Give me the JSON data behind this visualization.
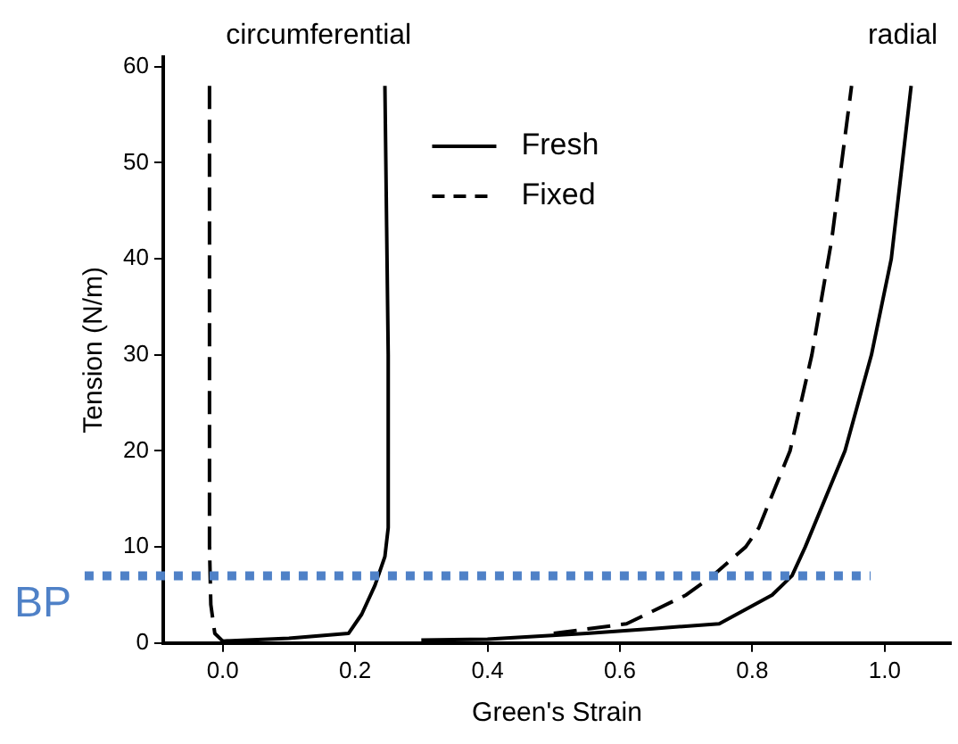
{
  "chart_data": {
    "type": "line",
    "xlabel": "Green's Strain",
    "ylabel": "Tension (N/m)",
    "xlim": [
      -0.09,
      1.1
    ],
    "ylim": [
      0,
      61
    ],
    "xticks": [
      {
        "value": 0,
        "label": "0.0"
      },
      {
        "value": 0.2,
        "label": "0.2"
      },
      {
        "value": 0.4,
        "label": "0.4"
      },
      {
        "value": 0.6,
        "label": "0.6"
      },
      {
        "value": 0.8,
        "label": "0.8"
      },
      {
        "value": 1,
        "label": "1.0"
      }
    ],
    "yticks": [
      0,
      10,
      20,
      30,
      40,
      50,
      60
    ],
    "grid": false,
    "legend": "top",
    "marker": "none",
    "series": [
      {
        "name": "Fresh",
        "color": "#000000",
        "line_style": "solid",
        "x": [
          0,
          0.1,
          0.19,
          0.21,
          0.23,
          0.245,
          0.25,
          0.25,
          0.245
        ],
        "values": [
          0.2,
          0.5,
          1,
          3,
          6,
          9,
          12,
          30,
          58
        ]
      },
      {
        "name": "Fixed",
        "color": "#000000",
        "line_style": "dashed",
        "x": [
          -0.02,
          -0.02,
          -0.018,
          -0.012,
          0,
          0.03
        ],
        "values": [
          58,
          10,
          4,
          1,
          0.2,
          0.1
        ]
      },
      {
        "color": "#000000",
        "line_style": "solid",
        "x": [
          0.3,
          0.4,
          0.55,
          0.65,
          0.75,
          0.83,
          0.86,
          0.88,
          0.94,
          0.98,
          1.01,
          1.04
        ],
        "values": [
          0.3,
          0.4,
          1,
          1.5,
          2,
          5,
          7,
          10,
          20,
          30,
          40,
          58
        ]
      },
      {
        "color": "#000000",
        "line_style": "dashed",
        "x": [
          0.5,
          0.61,
          0.7,
          0.74,
          0.79,
          0.81,
          0.857,
          0.89,
          0.92,
          0.95
        ],
        "values": [
          1,
          2,
          5,
          7,
          10,
          12,
          20,
          30,
          42,
          58
        ]
      }
    ],
    "ref_lines": [
      {
        "axis": "y",
        "value": 7,
        "label": "BP",
        "color": "#4f81c7",
        "line_style": "dotted"
      }
    ],
    "annotations": [
      "circumferential",
      "radial"
    ]
  }
}
